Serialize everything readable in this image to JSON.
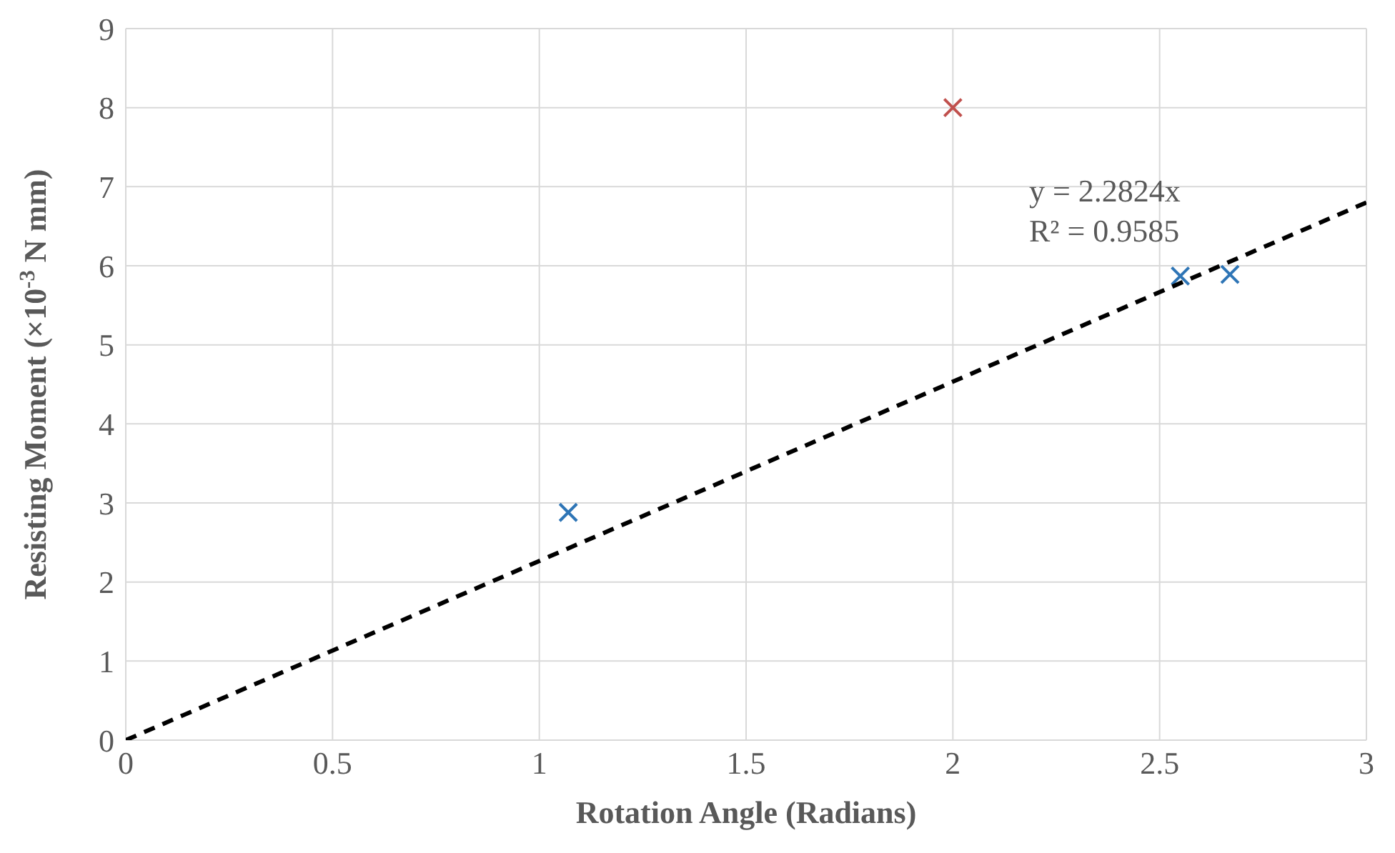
{
  "chart_data": {
    "type": "scatter",
    "xlabel": "Rotation Angle (Radians)",
    "ylabel": "Resisting Moment (×10$^{-3}$ N mm)",
    "xlim": [
      0,
      3
    ],
    "xticks": [
      0,
      0.5,
      1,
      1.5,
      2,
      2.5,
      3
    ],
    "ylim": [
      0,
      9
    ],
    "yticks": [
      0,
      1,
      2,
      3,
      4,
      5,
      6,
      7,
      8,
      9
    ],
    "grid": true,
    "marker": "cross",
    "series": [
      {
        "color": "#2e75b6",
        "x": [
          1.07,
          2.55,
          2.67
        ],
        "values": [
          2.88,
          5.87,
          5.89
        ]
      },
      {
        "color": "#c0504d",
        "x": [
          2.0
        ],
        "values": [
          8.0
        ]
      },
      {
        "type": "line",
        "color": "#000000",
        "line_style": "dashed",
        "marker": "none",
        "x": [
          0,
          3
        ],
        "values": [
          0,
          6.8
        ]
      }
    ],
    "annotations": [
      "y = 2.2824x",
      "R² = 0.9585"
    ]
  }
}
